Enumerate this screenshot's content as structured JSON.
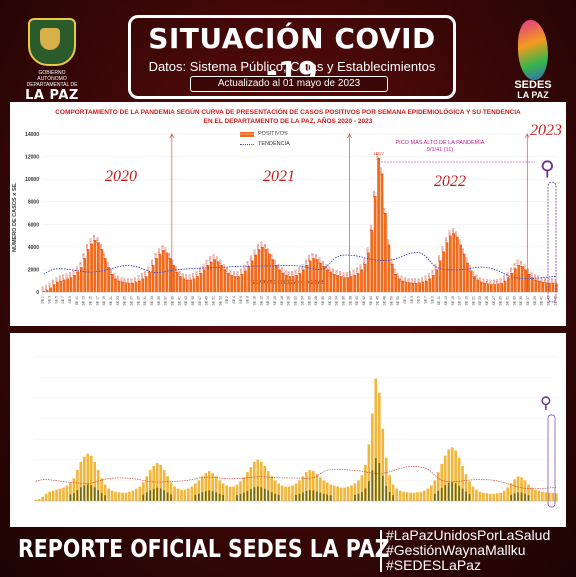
{
  "header": {
    "title": "SITUACIÓN COVID -19",
    "subtitle": "Datos: Sistema Público, Cajas y Establecimientos Privados",
    "updated": "Actualizado  al  01  mayo  de  2023",
    "logo_left_text": "GOBIERNO AUTÓNOMO DEPARTAMENTAL DE",
    "logo_left_name": "LA PAZ",
    "logo_right_line1": "SEDES",
    "logo_right_line2": "LA PAZ"
  },
  "chart_data": [
    {
      "type": "bar",
      "title_line1": "COMPORTAMIENTO DE LA PANDEMIA SEGÚN CURVA DE PRESENTACIÓN DE CASOS POSITIVOS POR SEMANA EPIDEMIOLÓGICA Y SU TENDENCIA",
      "title_line2": "EN EL DEPARTAMENTO DE LA PAZ, AÑOS 2020 - 2023",
      "xlabel": "SEMANAS EPIDEMIOLOGICAS",
      "ylabel": "NÚMERO DE CASOS x SE.",
      "ylim": [
        0,
        14000
      ],
      "yticks": [
        "0",
        "2000",
        "4000",
        "6000",
        "8000",
        "10000",
        "12000",
        "14000"
      ],
      "legend": [
        "POSITIVOS",
        "TENDENCIA"
      ],
      "year_labels": [
        "2020",
        "2021",
        "2022",
        "2023"
      ],
      "peak_note_line1": "PICO MÁS ALTO DE LA PANDEMIA",
      "peak_note_line2": "9/1/41 (11)",
      "peak_label": "11877",
      "series": [
        {
          "name": "POSITIVOS",
          "values": [
            100,
            200,
            400,
            700,
            900,
            1000,
            1100,
            1200,
            1300,
            1500,
            1800,
            2200,
            3000,
            3800,
            4300,
            4600,
            4400,
            3800,
            3000,
            2200,
            1600,
            1200,
            1000,
            900,
            850,
            800,
            800,
            900,
            1000,
            1200,
            1400,
            1800,
            2400,
            3000,
            3400,
            3700,
            3500,
            3000,
            2400,
            1800,
            1400,
            1200,
            1100,
            1100,
            1200,
            1400,
            1700,
            2000,
            2400,
            2700,
            2900,
            2700,
            2400,
            2000,
            1700,
            1500,
            1400,
            1400,
            1600,
            1900,
            2300,
            2800,
            3300,
            3800,
            4000,
            3800,
            3400,
            2900,
            2400,
            2000,
            1700,
            1500,
            1400,
            1400,
            1500,
            1700,
            2000,
            2400,
            2800,
            3000,
            2900,
            2600,
            2300,
            2000,
            1800,
            1600,
            1500,
            1400,
            1300,
            1300,
            1400,
            1500,
            1700,
            2000,
            2500,
            3500,
            5500,
            8500,
            11877,
            10500,
            7000,
            4200,
            2500,
            1600,
            1200,
            1000,
            900,
            850,
            800,
            800,
            850,
            900,
            1000,
            1200,
            1500,
            2000,
            2800,
            3600,
            4400,
            5000,
            5200,
            4900,
            4200,
            3400,
            2600,
            1900,
            1400,
            1100,
            900,
            800,
            750,
            700,
            700,
            750,
            800,
            1000,
            1300,
            1700,
            2100,
            2400,
            2300,
            2000,
            1600,
            1300,
            1100,
            1000,
            900,
            850,
            800,
            800,
            750
          ]
        }
      ]
    },
    {
      "type": "bar",
      "series": [
        {
          "name": "",
          "values": [
            100,
            200,
            400,
            700,
            900,
            1000,
            1100,
            1200,
            1300,
            1500,
            1800,
            2200,
            3000,
            3800,
            4300,
            4600,
            4400,
            3800,
            3000,
            2200,
            1600,
            1200,
            1000,
            900,
            850,
            800,
            800,
            900,
            1000,
            1200,
            1400,
            1800,
            2400,
            3000,
            3400,
            3700,
            3500,
            3000,
            2400,
            1800,
            1400,
            1200,
            1100,
            1100,
            1200,
            1400,
            1700,
            2000,
            2400,
            2700,
            2900,
            2700,
            2400,
            2000,
            1700,
            1500,
            1400,
            1400,
            1600,
            1900,
            2300,
            2800,
            3300,
            3800,
            4000,
            3800,
            3400,
            2900,
            2400,
            2000,
            1700,
            1500,
            1400,
            1400,
            1500,
            1700,
            2000,
            2400,
            2800,
            3000,
            2900,
            2600,
            2300,
            2000,
            1800,
            1600,
            1500,
            1400,
            1300,
            1300,
            1400,
            1500,
            1700,
            2000,
            2500,
            3500,
            5500,
            8500,
            11877,
            10500,
            7000,
            4200,
            2500,
            1600,
            1200,
            1000,
            900,
            850,
            800,
            800,
            850,
            900,
            1000,
            1200,
            1500,
            2000,
            2800,
            3600,
            4400,
            5000,
            5200,
            4900,
            4200,
            3400,
            2600,
            1900,
            1400,
            1100,
            900,
            800,
            750,
            700,
            700,
            750,
            800,
            1000,
            1300,
            1700,
            2100,
            2400,
            2300,
            2000,
            1600,
            1300,
            1100,
            1000,
            900,
            850,
            800,
            800,
            750
          ]
        }
      ]
    }
  ],
  "footer": {
    "report": "REPORTE OFICIAL SEDES LA PAZ",
    "hashtags": [
      "#LaPazUnidosPorLaSalud",
      "#GestiónWaynaMallku",
      "#SEDESLaPaz"
    ]
  },
  "colors": {
    "positivos": "#f26a1b",
    "tendencia": "#3b4bd0",
    "title_red": "#cc1b1b",
    "panel2_bars": "#f2b73a"
  }
}
